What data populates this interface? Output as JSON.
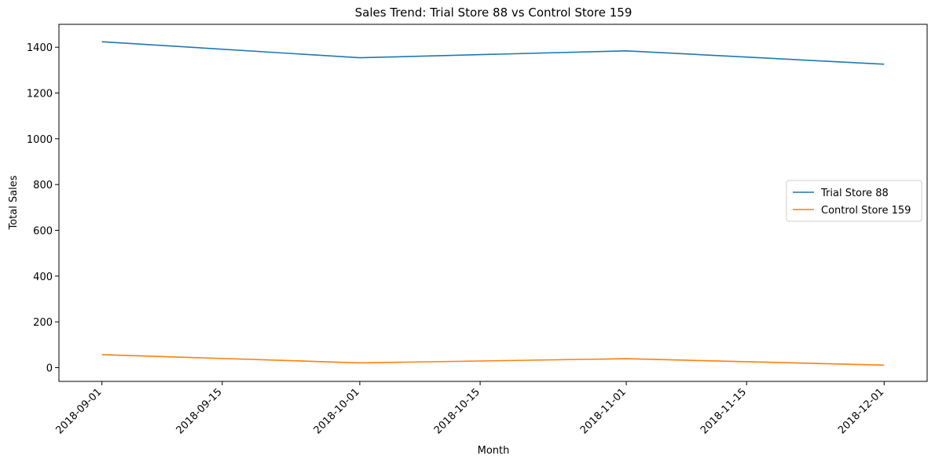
{
  "chart_data": {
    "type": "line",
    "title": "Sales Trend: Trial Store 88 vs Control Store 159",
    "xlabel": "Month",
    "ylabel": "Total Sales",
    "x": [
      "2018-09-01",
      "2018-10-01",
      "2018-11-01",
      "2018-12-01"
    ],
    "x_ticks": [
      "2018-09-01",
      "2018-09-15",
      "2018-10-01",
      "2018-10-15",
      "2018-11-01",
      "2018-11-15",
      "2018-12-01"
    ],
    "xlim": [
      "2018-08-27",
      "2018-12-06"
    ],
    "ylim": [
      -60,
      1500
    ],
    "y_ticks": [
      0,
      200,
      400,
      600,
      800,
      1000,
      1200,
      1400
    ],
    "grid": false,
    "legend_position": "center-right",
    "series": [
      {
        "name": "Trial Store 88",
        "color": "#1f77b4",
        "values": [
          1424,
          1354,
          1384,
          1326
        ]
      },
      {
        "name": "Control Store 159",
        "color": "#ff7f0e",
        "values": [
          57,
          21,
          39,
          11
        ]
      }
    ]
  }
}
